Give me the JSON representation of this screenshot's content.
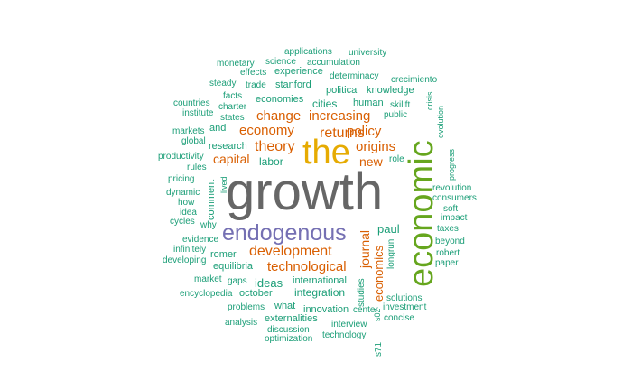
{
  "colors": {
    "dark_gray": "#666666",
    "gold": "#e6ab02",
    "green": "#66a61e",
    "purple": "#7570b3",
    "orange": "#d95f02",
    "teal": "#1b9e77"
  },
  "words": [
    {
      "text": "growth",
      "color": "dark_gray"
    },
    {
      "text": "the",
      "color": "gold"
    },
    {
      "text": "economic",
      "color": "green"
    },
    {
      "text": "endogenous",
      "color": "purple"
    },
    {
      "text": "development",
      "color": "orange"
    },
    {
      "text": "technological",
      "color": "orange"
    },
    {
      "text": "theory",
      "color": "orange"
    },
    {
      "text": "returns",
      "color": "orange"
    },
    {
      "text": "economy",
      "color": "orange"
    },
    {
      "text": "change",
      "color": "orange"
    },
    {
      "text": "increasing",
      "color": "orange"
    },
    {
      "text": "policy",
      "color": "orange"
    },
    {
      "text": "origins",
      "color": "orange"
    },
    {
      "text": "capital",
      "color": "orange"
    },
    {
      "text": "new",
      "color": "orange"
    },
    {
      "text": "journal",
      "color": "orange"
    },
    {
      "text": "economics",
      "color": "orange"
    },
    {
      "text": "paul",
      "color": "teal"
    },
    {
      "text": "cities",
      "color": "teal"
    },
    {
      "text": "ideas",
      "color": "teal"
    },
    {
      "text": "integration",
      "color": "teal"
    },
    {
      "text": "international",
      "color": "teal"
    },
    {
      "text": "labor",
      "color": "teal"
    },
    {
      "text": "research",
      "color": "teal"
    },
    {
      "text": "human",
      "color": "teal"
    },
    {
      "text": "stanford",
      "color": "teal"
    },
    {
      "text": "political",
      "color": "teal"
    },
    {
      "text": "knowledge",
      "color": "teal"
    },
    {
      "text": "economies",
      "color": "teal"
    },
    {
      "text": "experience",
      "color": "teal"
    },
    {
      "text": "determinacy",
      "color": "teal"
    },
    {
      "text": "applications",
      "color": "teal"
    },
    {
      "text": "university",
      "color": "teal"
    },
    {
      "text": "science",
      "color": "teal"
    },
    {
      "text": "accumulation",
      "color": "teal"
    },
    {
      "text": "monetary",
      "color": "teal"
    },
    {
      "text": "effects",
      "color": "teal"
    },
    {
      "text": "crecimiento",
      "color": "teal"
    },
    {
      "text": "steady",
      "color": "teal"
    },
    {
      "text": "trade",
      "color": "teal"
    },
    {
      "text": "facts",
      "color": "teal"
    },
    {
      "text": "countries",
      "color": "teal"
    },
    {
      "text": "charter",
      "color": "teal"
    },
    {
      "text": "skilift",
      "color": "teal"
    },
    {
      "text": "institute",
      "color": "teal"
    },
    {
      "text": "states",
      "color": "teal"
    },
    {
      "text": "public",
      "color": "teal"
    },
    {
      "text": "crisis",
      "color": "teal"
    },
    {
      "text": "evolution",
      "color": "teal"
    },
    {
      "text": "markets",
      "color": "teal"
    },
    {
      "text": "and",
      "color": "teal"
    },
    {
      "text": "global",
      "color": "teal"
    },
    {
      "text": "productivity",
      "color": "teal"
    },
    {
      "text": "role",
      "color": "teal"
    },
    {
      "text": "rules",
      "color": "teal"
    },
    {
      "text": "progress",
      "color": "teal"
    },
    {
      "text": "pricing",
      "color": "teal"
    },
    {
      "text": "lived",
      "color": "teal"
    },
    {
      "text": "revolution",
      "color": "teal"
    },
    {
      "text": "dynamic",
      "color": "teal"
    },
    {
      "text": "comment",
      "color": "teal"
    },
    {
      "text": "consumers",
      "color": "teal"
    },
    {
      "text": "how",
      "color": "teal"
    },
    {
      "text": "soft",
      "color": "teal"
    },
    {
      "text": "idea",
      "color": "teal"
    },
    {
      "text": "impact",
      "color": "teal"
    },
    {
      "text": "cycles",
      "color": "teal"
    },
    {
      "text": "why",
      "color": "teal"
    },
    {
      "text": "taxes",
      "color": "teal"
    },
    {
      "text": "evidence",
      "color": "teal"
    },
    {
      "text": "beyond",
      "color": "teal"
    },
    {
      "text": "infinitely",
      "color": "teal"
    },
    {
      "text": "romer",
      "color": "teal"
    },
    {
      "text": "longrun",
      "color": "teal"
    },
    {
      "text": "robert",
      "color": "teal"
    },
    {
      "text": "developing",
      "color": "teal"
    },
    {
      "text": "equilibria",
      "color": "teal"
    },
    {
      "text": "paper",
      "color": "teal"
    },
    {
      "text": "market",
      "color": "teal"
    },
    {
      "text": "gaps",
      "color": "teal"
    },
    {
      "text": "encyclopedia",
      "color": "teal"
    },
    {
      "text": "october",
      "color": "teal"
    },
    {
      "text": "studies",
      "color": "teal"
    },
    {
      "text": "solutions",
      "color": "teal"
    },
    {
      "text": "problems",
      "color": "teal"
    },
    {
      "text": "what",
      "color": "teal"
    },
    {
      "text": "innovation",
      "color": "teal"
    },
    {
      "text": "center",
      "color": "teal"
    },
    {
      "text": "s02",
      "color": "teal"
    },
    {
      "text": "investment",
      "color": "teal"
    },
    {
      "text": "externalities",
      "color": "teal"
    },
    {
      "text": "concise",
      "color": "teal"
    },
    {
      "text": "analysis",
      "color": "teal"
    },
    {
      "text": "interview",
      "color": "teal"
    },
    {
      "text": "discussion",
      "color": "teal"
    },
    {
      "text": "optimization",
      "color": "teal"
    },
    {
      "text": "technology",
      "color": "teal"
    },
    {
      "text": "s71",
      "color": "teal"
    }
  ]
}
